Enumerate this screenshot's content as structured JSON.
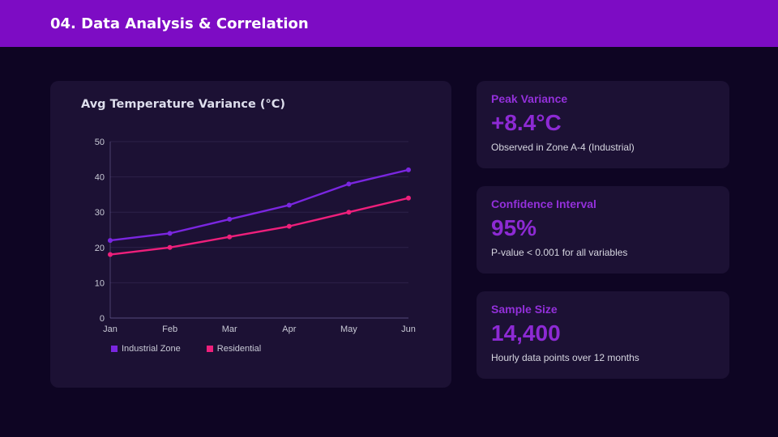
{
  "header": {
    "title": "04. Data Analysis & Correlation"
  },
  "chart_data": {
    "type": "line",
    "title": "Avg Temperature Variance (°C)",
    "categories": [
      "Jan",
      "Feb",
      "Mar",
      "Apr",
      "May",
      "Jun"
    ],
    "series": [
      {
        "name": "Industrial Zone",
        "color": "#7a26e0",
        "values": [
          22,
          24,
          28,
          32,
          38,
          42
        ]
      },
      {
        "name": "Residential",
        "color": "#ee1f7b",
        "values": [
          18,
          20,
          23,
          26,
          30,
          34
        ]
      }
    ],
    "ylim": [
      0,
      50
    ],
    "yticks": [
      0,
      10,
      20,
      30,
      40,
      50
    ],
    "grid": true,
    "legend_position": "bottom"
  },
  "stats": [
    {
      "label": "Peak Variance",
      "value": "+8.4°C",
      "caption": "Observed in Zone A-4 (Industrial)"
    },
    {
      "label": "Confidence Interval",
      "value": "95%",
      "caption": "P-value < 0.001 for all variables"
    },
    {
      "label": "Sample Size",
      "value": "14,400",
      "caption": "Hourly data points over 12 months"
    }
  ],
  "colors": {
    "header_bg": "#7d0cc4",
    "page_bg": "#0e0523",
    "card_bg": "#1c1134",
    "accent_purple": "#8d2ad4",
    "industrial_line": "#7a26e0",
    "residential_line": "#ee1f7b",
    "axis_text": "#c9cad6"
  }
}
